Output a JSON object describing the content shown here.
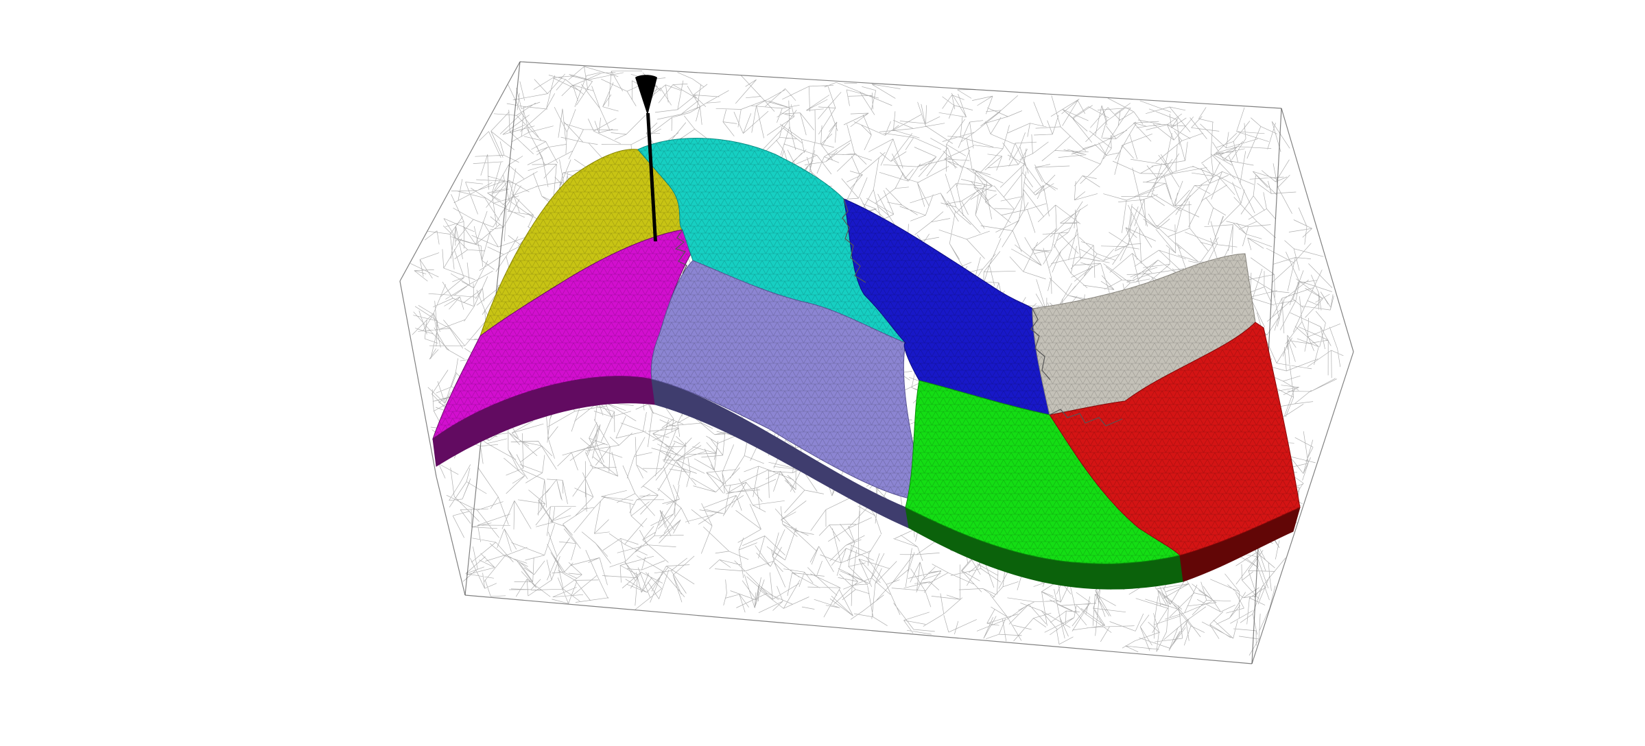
{
  "scene": {
    "background": "#ffffff",
    "wireframe_color": "#4a4a4a",
    "partitions": [
      {
        "id": "yellow",
        "color": "#c8c414",
        "edge": "#8a8606"
      },
      {
        "id": "cyan",
        "color": "#16cfc2",
        "edge": "#0b8f86"
      },
      {
        "id": "magenta",
        "color": "#d20fcf",
        "edge": "#6d0a6c",
        "side": "#620b61"
      },
      {
        "id": "lavender",
        "color": "#8c85d2",
        "edge": "#5a5497",
        "side": "#3f3d6e"
      },
      {
        "id": "blue",
        "color": "#1818c8",
        "edge": "#0c0c84"
      },
      {
        "id": "silver",
        "color": "#c4c1b8",
        "edge": "#8a877f"
      },
      {
        "id": "green",
        "color": "#14dd14",
        "edge": "#0a8f0a",
        "side": "#0b620b"
      },
      {
        "id": "red",
        "color": "#d41414",
        "edge": "#8a0a0a",
        "side": "#620606"
      }
    ],
    "probe": {
      "color": "#000000"
    }
  }
}
